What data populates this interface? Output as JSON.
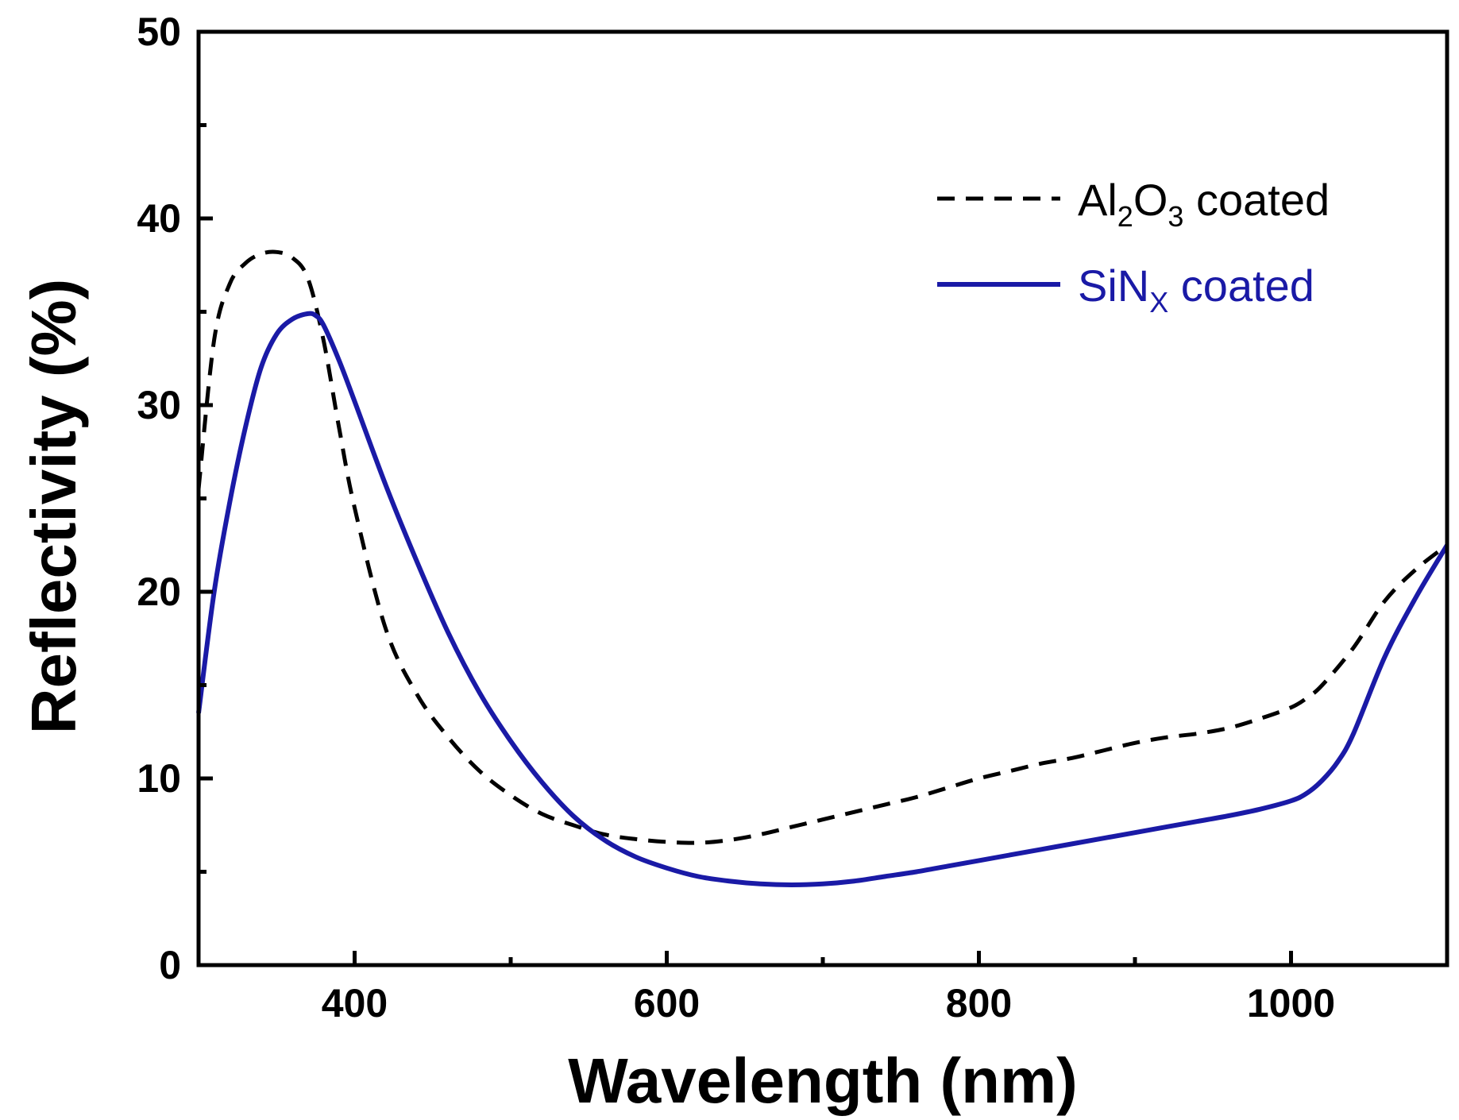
{
  "chart_data": {
    "type": "line",
    "title": "",
    "xlabel": "Wavelength (nm)",
    "ylabel": "Reflectivity (%)",
    "xlim": [
      300,
      1100
    ],
    "ylim": [
      0,
      50
    ],
    "x_ticks": [
      400,
      600,
      800,
      1000
    ],
    "x_minor_ticks": [
      500,
      700,
      900
    ],
    "y_ticks": [
      0,
      10,
      20,
      30,
      40,
      50
    ],
    "y_minor_ticks": [
      5,
      15,
      25,
      35,
      45
    ],
    "x_tick_labels": [
      "400",
      "600",
      "800",
      "1000"
    ],
    "y_tick_labels": [
      "0",
      "10",
      "20",
      "30",
      "40",
      "50"
    ],
    "grid": false,
    "legend_position": "top-right",
    "series": [
      {
        "name_main": "Al",
        "name_sub1": "2",
        "name_mid": "O",
        "name_sub2": "3",
        "name_tail": " coated",
        "style": "dashed",
        "color": "#000000",
        "x": [
          300,
          310,
          320,
          330,
          340,
          350,
          360,
          370,
          380,
          390,
          400,
          420,
          440,
          460,
          480,
          500,
          520,
          540,
          560,
          580,
          600,
          620,
          640,
          660,
          680,
          700,
          720,
          740,
          760,
          780,
          800,
          820,
          840,
          860,
          880,
          900,
          920,
          940,
          960,
          980,
          1000,
          1010,
          1020,
          1040,
          1060,
          1080,
          1100
        ],
        "y": [
          25.5,
          33.5,
          36.5,
          37.6,
          38.1,
          38.2,
          37.9,
          36.8,
          33.5,
          28.8,
          24.5,
          18.0,
          14.5,
          12.2,
          10.4,
          9.1,
          8.1,
          7.5,
          7.0,
          6.75,
          6.6,
          6.55,
          6.7,
          7.0,
          7.4,
          7.8,
          8.2,
          8.6,
          9.0,
          9.5,
          10.0,
          10.4,
          10.8,
          11.1,
          11.5,
          11.9,
          12.2,
          12.4,
          12.7,
          13.2,
          13.8,
          14.3,
          15.0,
          17.0,
          19.5,
          21.2,
          22.5
        ]
      },
      {
        "name_main": "SiN",
        "name_sub1": "X",
        "name_mid": "",
        "name_sub2": "",
        "name_tail": " coated",
        "style": "solid",
        "color": "#1a1aa6",
        "x": [
          300,
          310,
          320,
          330,
          340,
          350,
          360,
          370,
          375,
          380,
          390,
          400,
          420,
          440,
          460,
          480,
          500,
          520,
          540,
          560,
          580,
          600,
          620,
          640,
          660,
          680,
          700,
          720,
          740,
          760,
          780,
          800,
          820,
          840,
          860,
          880,
          900,
          920,
          940,
          960,
          980,
          1000,
          1010,
          1020,
          1030,
          1040,
          1060,
          1080,
          1100
        ],
        "y": [
          13.5,
          20.0,
          24.8,
          28.8,
          32.0,
          33.8,
          34.6,
          34.9,
          34.8,
          34.3,
          32.4,
          30.2,
          25.7,
          21.6,
          17.8,
          14.6,
          12.0,
          9.8,
          8.0,
          6.7,
          5.8,
          5.2,
          4.75,
          4.5,
          4.35,
          4.3,
          4.35,
          4.5,
          4.75,
          5.0,
          5.3,
          5.6,
          5.9,
          6.2,
          6.5,
          6.8,
          7.1,
          7.4,
          7.7,
          8.0,
          8.35,
          8.8,
          9.2,
          9.9,
          10.9,
          12.4,
          16.5,
          19.7,
          22.5
        ]
      }
    ]
  }
}
